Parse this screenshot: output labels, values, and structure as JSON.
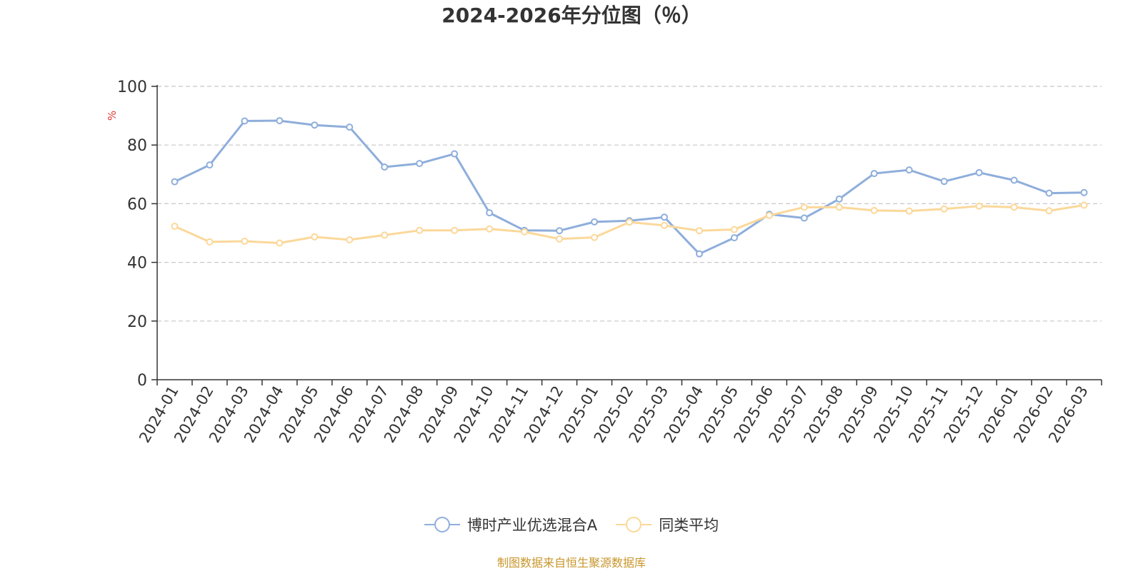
{
  "chart_data": {
    "type": "line",
    "title": "2024-2026年分位图（％）",
    "ylabel": "%",
    "xlabel": "",
    "ylim": [
      0,
      100
    ],
    "yticks": [
      0,
      20,
      40,
      60,
      80,
      100
    ],
    "grid": true,
    "legend_position": "bottom",
    "categories": [
      "2024-01",
      "2024-02",
      "2024-03",
      "2024-04",
      "2024-05",
      "2024-06",
      "2024-07",
      "2024-08",
      "2024-09",
      "2024-10",
      "2024-11",
      "2024-12",
      "2025-01",
      "2025-02",
      "2025-03",
      "2025-04",
      "2025-05",
      "2025-06",
      "2025-07",
      "2025-08",
      "2025-09",
      "2025-10",
      "2025-11",
      "2025-12",
      "2026-01",
      "2026-02",
      "2026-03"
    ],
    "series": [
      {
        "name": "博时产业优选混合A",
        "color": "#8eaedb",
        "values": [
          67.5,
          73.2,
          88.2,
          88.3,
          86.8,
          86.1,
          72.5,
          73.7,
          77.0,
          56.9,
          50.9,
          50.8,
          53.8,
          54.2,
          55.4,
          42.9,
          48.4,
          56.4,
          55.1,
          61.6,
          70.3,
          71.5,
          67.6,
          70.6,
          68.0,
          63.6,
          63.8
        ]
      },
      {
        "name": "同类平均",
        "color": "#fbd89a",
        "values": [
          52.3,
          47.0,
          47.2,
          46.6,
          48.7,
          47.7,
          49.3,
          50.9,
          50.9,
          51.4,
          50.4,
          48.0,
          48.5,
          53.7,
          52.6,
          50.8,
          51.2,
          56.0,
          58.8,
          58.8,
          57.7,
          57.5,
          58.2,
          59.2,
          58.8,
          57.6,
          59.5
        ]
      }
    ]
  },
  "source_note": "制图数据来自恒生聚源数据库"
}
